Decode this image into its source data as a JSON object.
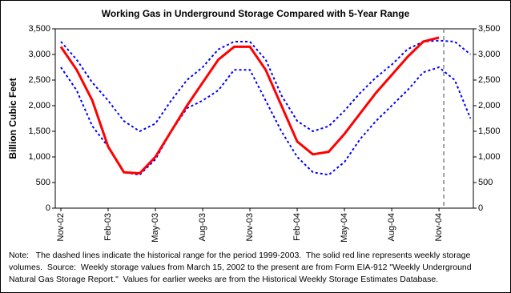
{
  "chart_data": {
    "type": "line",
    "title": "Working Gas in Underground Storage Compared with 5-Year Range",
    "y_label": "Billion Cubic Feet",
    "categories": [
      "Nov-02",
      null,
      null,
      "Feb-03",
      null,
      null,
      "May-03",
      null,
      null,
      "Aug-03",
      null,
      null,
      "Nov-03",
      null,
      null,
      "Feb-04",
      null,
      null,
      "May-04",
      null,
      null,
      "Aug-04",
      null,
      null,
      "Nov-04",
      null,
      null
    ],
    "series": [
      {
        "name": "5-year maximum",
        "color": "#0000ff",
        "dashed": true,
        "width": 2,
        "values": [
          3250,
          2900,
          2450,
          2100,
          1700,
          1500,
          1650,
          2100,
          2500,
          2750,
          3100,
          3250,
          3250,
          2900,
          2200,
          1700,
          1500,
          1600,
          1900,
          2250,
          2550,
          2800,
          3100,
          3250,
          3270,
          3250,
          3000
        ]
      },
      {
        "name": "5-year minimum",
        "color": "#0000ff",
        "dashed": true,
        "width": 2,
        "values": [
          2750,
          2300,
          1600,
          1200,
          700,
          650,
          950,
          1500,
          1950,
          2100,
          2300,
          2700,
          2700,
          2100,
          1500,
          1000,
          700,
          650,
          900,
          1350,
          1700,
          2000,
          2300,
          2650,
          2750,
          2500,
          1750
        ]
      },
      {
        "name": "Weekly storage",
        "color": "#ff0000",
        "dashed": false,
        "width": 3,
        "values": [
          3150,
          2700,
          2100,
          1200,
          700,
          680,
          1000,
          1500,
          2000,
          2450,
          2900,
          3150,
          3150,
          2700,
          2000,
          1300,
          1050,
          1100,
          1450,
          1850,
          2250,
          2600,
          2950,
          3250,
          3330,
          null,
          null
        ]
      }
    ],
    "ylim": [
      0,
      3500
    ],
    "yticks": [
      0,
      500,
      {
        "value": 1000,
        "label": "1,000"
      },
      {
        "value": 1500,
        "label": "1,500"
      },
      {
        "value": 2000,
        "label": "2,000"
      },
      {
        "value": 2500,
        "label": "2,500"
      },
      {
        "value": 3000,
        "label": "3,000"
      },
      {
        "value": 3500,
        "label": "3,500"
      }
    ],
    "y2lim": [
      0,
      3500
    ],
    "y2ticks": [
      0,
      500,
      {
        "value": 1000,
        "label": "1,000"
      },
      {
        "value": 1500,
        "label": "1,500"
      },
      {
        "value": 2000,
        "label": "2,000"
      },
      {
        "value": 2500,
        "label": "2,500"
      },
      {
        "value": 3000,
        "label": "3,000"
      },
      {
        "value": 3500,
        "label": "3,500"
      }
    ],
    "note_lines": [
      "Note:   The dashed lines indicate the historical range for the period 1999-2003.  The solid red line represents weekly storage",
      "volumes.  Source:  Weekly storage values from March 15, 2002 to the present are from Form EIA-912 \"Weekly Underground",
      "Natural Gas Storage Report.\"  Values for earlier weeks are from the Historical Weekly Storage Estimates Database."
    ]
  }
}
